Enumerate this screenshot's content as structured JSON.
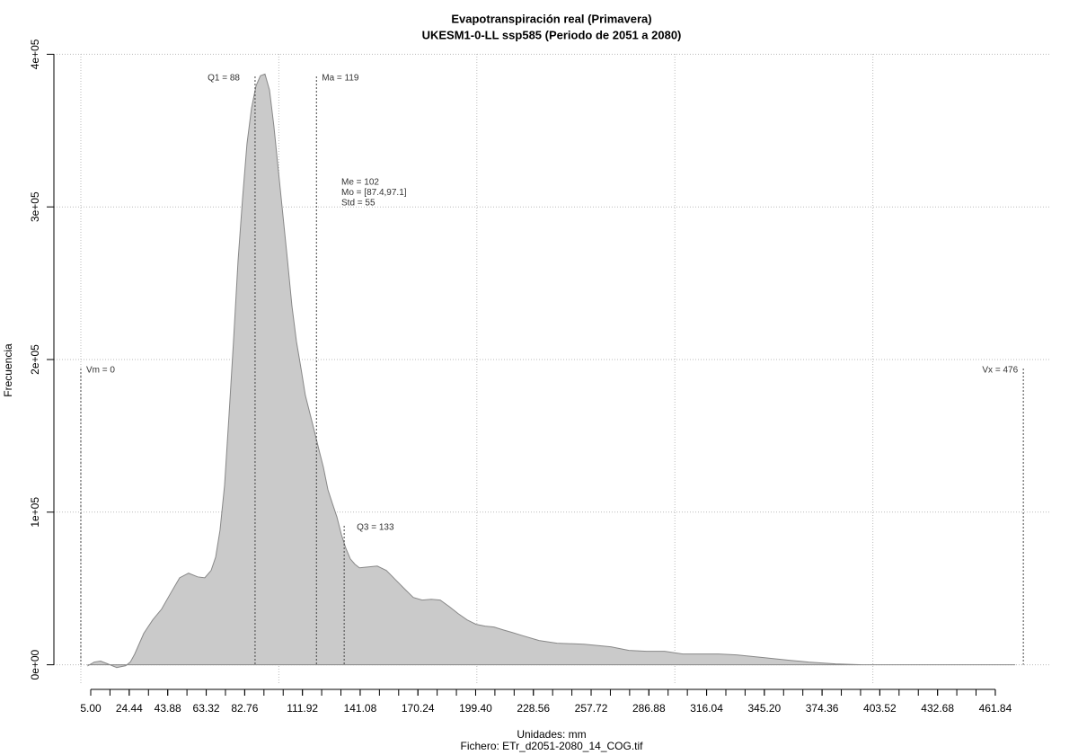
{
  "chart_data": {
    "type": "area",
    "title": "Evapotranspiración real (Primavera)",
    "subtitle": "UKESM1-0-LL ssp585 (Periodo de 2051 a 2080)",
    "x_label": "Unidades: mm",
    "footnote": "Fichero: ETr_d2051-2080_14_COG.tif",
    "y_label": "Frecuencia",
    "color": "#cacaca",
    "x": [
      3.6,
      6.8,
      10.0,
      13.6,
      18.1,
      22.7,
      25.0,
      27.2,
      31.8,
      36.3,
      40.8,
      45.4,
      49.9,
      54.4,
      59.0,
      62.6,
      65.8,
      68.1,
      70.3,
      72.6,
      74.9,
      77.1,
      79.4,
      81.7,
      83.9,
      86.2,
      88.5,
      90.7,
      93.0,
      95.3,
      97.5,
      99.8,
      102.1,
      104.4,
      106.6,
      108.9,
      111.2,
      113.4,
      115.7,
      118.0,
      120.2,
      122.5,
      124.8,
      127.0,
      129.3,
      131.6,
      133.8,
      136.1,
      138.4,
      140.7,
      145.2,
      149.7,
      154.3,
      158.8,
      163.3,
      167.9,
      172.4,
      177.0,
      181.5,
      186.0,
      190.6,
      195.1,
      199.6,
      204.2,
      208.7,
      213.2,
      217.8,
      222.3,
      231.4,
      240.5,
      254.1,
      267.7,
      276.8,
      285.8,
      294.9,
      304.0,
      322.1,
      331.2,
      344.8,
      358.4,
      367.5,
      381.1,
      394.7,
      412.9,
      471.9
    ],
    "values": [
      -600,
      1800,
      2400,
      600,
      -1800,
      -600,
      1800,
      7000,
      20600,
      29400,
      36500,
      47000,
      57000,
      60000,
      57600,
      57000,
      61800,
      70600,
      88200,
      117600,
      164700,
      211800,
      264700,
      305900,
      341200,
      364700,
      379400,
      385900,
      387000,
      376500,
      352900,
      323500,
      294100,
      264700,
      235300,
      211800,
      194100,
      176500,
      164700,
      152900,
      141200,
      129400,
      114700,
      105900,
      97000,
      85300,
      76500,
      69400,
      65900,
      63500,
      64100,
      64700,
      61800,
      55900,
      50000,
      44100,
      42400,
      42900,
      42400,
      38200,
      33500,
      29400,
      26500,
      25300,
      24700,
      22900,
      21200,
      19400,
      15900,
      14100,
      13500,
      11800,
      9400,
      8800,
      8800,
      7100,
      7100,
      6500,
      4700,
      2900,
      1800,
      600,
      0,
      0,
      0
    ],
    "xlim": [
      -13.6,
      490
    ],
    "ylim": [
      -12000,
      412000
    ],
    "yticks": [
      {
        "value": 0,
        "label": "0e+00"
      },
      {
        "value": 100000,
        "label": "1e+05"
      },
      {
        "value": 200000,
        "label": "2e+05"
      },
      {
        "value": 300000,
        "label": "3e+05"
      },
      {
        "value": 400000,
        "label": "4e+05"
      }
    ],
    "xticks": [
      {
        "value": 5,
        "label": "5.00"
      },
      24.44,
      43.88,
      63.32,
      82.76,
      111.92,
      141.08,
      170.24,
      {
        "value": 199.4,
        "label": "199.40"
      },
      228.56,
      257.72,
      286.88,
      316.04,
      {
        "value": 345.2,
        "label": "345.20"
      },
      374.36,
      403.52,
      432.68,
      461.84
    ],
    "xminorticks": [
      5.0,
      14.72,
      24.44,
      34.16,
      43.88,
      53.6,
      63.32,
      73.04,
      82.76,
      92.48,
      102.2,
      111.92,
      121.64,
      131.36,
      141.08,
      150.8,
      160.52,
      170.24,
      179.96,
      189.68,
      199.4,
      209.12,
      218.84,
      228.56,
      238.28,
      248.0,
      257.72,
      267.44,
      277.16,
      286.88,
      296.6,
      306.32,
      316.04,
      325.76,
      335.48,
      345.2,
      354.92,
      364.64,
      374.36,
      384.08,
      393.8,
      403.52,
      413.24,
      422.96,
      432.68,
      442.4,
      452.12,
      461.84
    ],
    "xgrid": [
      0,
      100,
      200,
      300,
      400
    ],
    "grid": true,
    "markers": [
      {
        "label": "Vm = 0",
        "x": 0
      },
      {
        "label": "Q1 = 88",
        "x": 88
      },
      {
        "label": "Ma = 119",
        "x": 119
      },
      {
        "label": "Q3 = 133",
        "x": 133
      },
      {
        "label": "Vx = 476",
        "x": 476
      }
    ],
    "stats": [
      "Me = 102",
      "Mo = [87.4,97.1]",
      "Std = 55"
    ]
  }
}
